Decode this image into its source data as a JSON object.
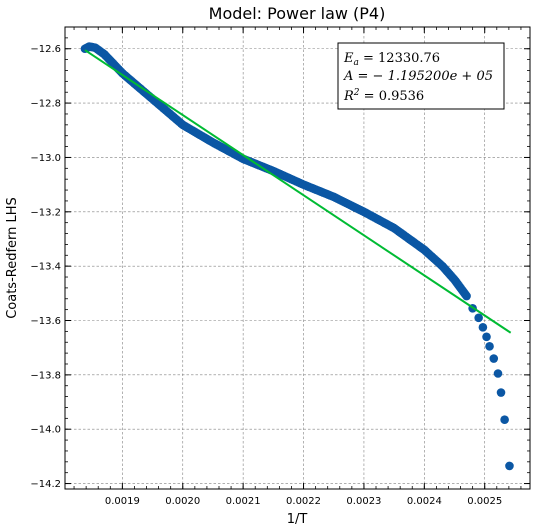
{
  "chart_data": {
    "type": "scatter",
    "title": "Model: Power law (P4)",
    "xlabel": "1/T",
    "ylabel": "Coats-Redfern LHS",
    "xlim": [
      0.001805,
      0.002575
    ],
    "ylim": [
      -14.22,
      -12.52
    ],
    "x_ticks": [
      0.0019,
      0.002,
      0.0021,
      0.0022,
      0.0023,
      0.0024,
      0.0025
    ],
    "x_tick_labels": [
      "0.0019",
      "0.0020",
      "0.0021",
      "0.0022",
      "0.0023",
      "0.0024",
      "0.0025"
    ],
    "y_ticks": [
      -12.6,
      -12.8,
      -13.0,
      -13.2,
      -13.4,
      -13.6,
      -13.8,
      -14.0,
      -14.2
    ],
    "y_tick_labels": [
      "−12.6",
      "−12.8",
      "−13.0",
      "−13.2",
      "−13.4",
      "−13.6",
      "−13.8",
      "−14.0",
      "−14.2"
    ],
    "grid": true,
    "series": [
      {
        "kind": "scatter",
        "color": "#0b57a4",
        "dense_path": [
          [
            0.001838,
            -12.6
          ],
          [
            0.001845,
            -12.592
          ],
          [
            0.001855,
            -12.596
          ],
          [
            0.00187,
            -12.62
          ],
          [
            0.0019,
            -12.69
          ],
          [
            0.00195,
            -12.785
          ],
          [
            0.002,
            -12.88
          ],
          [
            0.00205,
            -12.945
          ],
          [
            0.0021,
            -13.005
          ],
          [
            0.00215,
            -13.05
          ],
          [
            0.0022,
            -13.1
          ],
          [
            0.00225,
            -13.145
          ],
          [
            0.0023,
            -13.2
          ],
          [
            0.00235,
            -13.26
          ],
          [
            0.0024,
            -13.34
          ],
          [
            0.00243,
            -13.4
          ],
          [
            0.00245,
            -13.45
          ],
          [
            0.00247,
            -13.51
          ]
        ],
        "points": [
          [
            0.00248,
            -13.555
          ],
          [
            0.00249,
            -13.59
          ],
          [
            0.002497,
            -13.625
          ],
          [
            0.002503,
            -13.66
          ],
          [
            0.002508,
            -13.695
          ],
          [
            0.002515,
            -13.74
          ],
          [
            0.002522,
            -13.795
          ],
          [
            0.002527,
            -13.865
          ],
          [
            0.002533,
            -13.965
          ],
          [
            0.002541,
            -14.135
          ]
        ]
      },
      {
        "kind": "line",
        "color": "#00bb33",
        "x": [
          0.001838,
          0.002543
        ],
        "y": [
          -12.605,
          -13.645
        ]
      }
    ],
    "annotation": {
      "lines": [
        "E_a = 12330.76",
        "A = − 1.195200e + 05",
        "R^2 = 0.9536"
      ],
      "placement": "top-right"
    }
  }
}
